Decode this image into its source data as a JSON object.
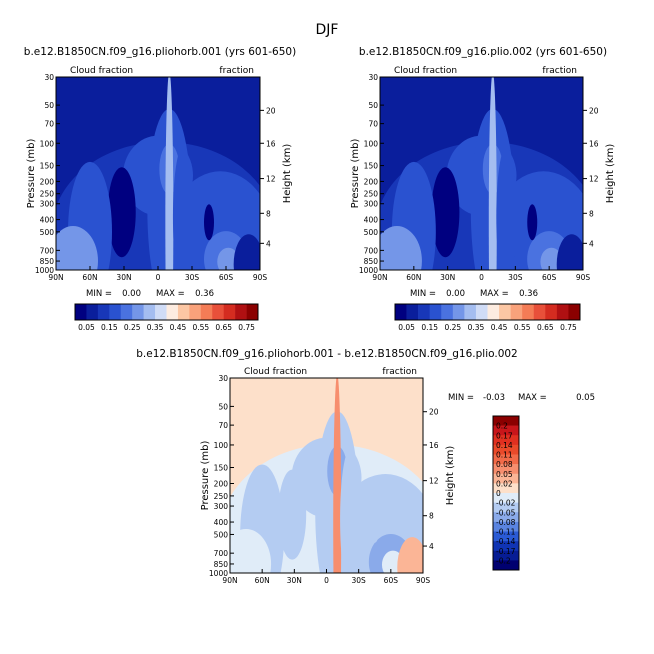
{
  "figure": {
    "title": "DJF"
  },
  "chart_data": [
    {
      "type": "heatmap",
      "title": "b.e12.B1850CN.f09_g16.pliohorb.001 (yrs 601-650)",
      "left_label": "Cloud fraction",
      "right_label": "fraction",
      "xlabel": "",
      "ylabel": "Pressure (mb)",
      "y2label": "Height (km)",
      "x_ticks": [
        "90N",
        "60N",
        "30N",
        "0",
        "30S",
        "60S",
        "90S"
      ],
      "y_ticks": [
        "30",
        "50",
        "70",
        "100",
        "150",
        "200",
        "250",
        "300",
        "400",
        "500",
        "700",
        "850",
        "1000"
      ],
      "y2_ticks": [
        "20",
        "16",
        "12",
        "8",
        "4"
      ],
      "xlim": [
        90,
        -90
      ],
      "ylim": [
        1000,
        30
      ],
      "stats": {
        "min_label": "MIN =",
        "min": "0.00",
        "max_label": "MAX =",
        "max": "0.36"
      },
      "colorbar": {
        "labels": [
          "0.05",
          "0.15",
          "0.25",
          "0.35",
          "0.45",
          "0.55",
          "0.65",
          "0.75"
        ],
        "colors": [
          "#000080",
          "#0a1e9c",
          "#1837b8",
          "#2a52d0",
          "#4a72e0",
          "#7496e8",
          "#a4bdf0",
          "#d0dcf6",
          "#fdece0",
          "#fcc7a4",
          "#f9a27b",
          "#f47c56",
          "#e8503a",
          "#d42c20",
          "#b01012",
          "#8b0000"
        ]
      },
      "colors": {
        "background": "#0a1e9c",
        "field": "#1837b8",
        "mid": "#2a52d0",
        "light": "#4a72e0",
        "lighter": "#7496e8",
        "core": "#a4bdf0",
        "low": "#0a1e9c",
        "dry": "#000080"
      }
    },
    {
      "type": "heatmap",
      "title": "b.e12.B1850CN.f09_g16.plio.002 (yrs 601-650)",
      "left_label": "Cloud fraction",
      "right_label": "fraction",
      "xlabel": "",
      "ylabel": "Pressure (mb)",
      "y2label": "Height (km)",
      "x_ticks": [
        "90N",
        "60N",
        "30N",
        "0",
        "30S",
        "60S",
        "90S"
      ],
      "y_ticks": [
        "30",
        "50",
        "70",
        "100",
        "150",
        "200",
        "250",
        "300",
        "400",
        "500",
        "700",
        "850",
        "1000"
      ],
      "y2_ticks": [
        "20",
        "16",
        "12",
        "8",
        "4"
      ],
      "xlim": [
        90,
        -90
      ],
      "ylim": [
        1000,
        30
      ],
      "stats": {
        "min_label": "MIN =",
        "min": "0.00",
        "max_label": "MAX =",
        "max": "0.36"
      },
      "colorbar": {
        "labels": [
          "0.05",
          "0.15",
          "0.25",
          "0.35",
          "0.45",
          "0.55",
          "0.65",
          "0.75"
        ],
        "colors": [
          "#000080",
          "#0a1e9c",
          "#1837b8",
          "#2a52d0",
          "#4a72e0",
          "#7496e8",
          "#a4bdf0",
          "#d0dcf6",
          "#fdece0",
          "#fcc7a4",
          "#f9a27b",
          "#f47c56",
          "#e8503a",
          "#d42c20",
          "#b01012",
          "#8b0000"
        ]
      },
      "colors": {
        "background": "#0a1e9c",
        "field": "#1837b8",
        "mid": "#2a52d0",
        "light": "#4a72e0",
        "lighter": "#7496e8",
        "core": "#a4bdf0",
        "low": "#0a1e9c",
        "dry": "#000080"
      }
    },
    {
      "type": "heatmap",
      "title": "b.e12.B1850CN.f09_g16.pliohorb.001 - b.e12.B1850CN.f09_g16.plio.002",
      "left_label": "Cloud fraction",
      "right_label": "fraction",
      "xlabel": "",
      "ylabel": "Pressure (mb)",
      "y2label": "Height (km)",
      "x_ticks": [
        "90N",
        "60N",
        "30N",
        "0",
        "30S",
        "60S",
        "90S"
      ],
      "y_ticks": [
        "30",
        "50",
        "70",
        "100",
        "150",
        "200",
        "250",
        "300",
        "400",
        "500",
        "700",
        "850",
        "1000"
      ],
      "y2_ticks": [
        "20",
        "16",
        "12",
        "8",
        "4"
      ],
      "xlim": [
        90,
        -90
      ],
      "ylim": [
        1000,
        30
      ],
      "stats": {
        "min_label": "MIN =",
        "min": "-0.03",
        "max_label": "MAX =",
        "max": "0.05"
      },
      "colorbar": {
        "labels": [
          "0.2",
          "0.17",
          "0.14",
          "0.11",
          "0.08",
          "0.05",
          "0.02",
          "0",
          "-0.02",
          "-0.05",
          "-0.08",
          "-0.11",
          "-0.14",
          "-0.17",
          "-0.2"
        ],
        "colors": [
          "#8b0000",
          "#c8161a",
          "#e03020",
          "#ea4a2a",
          "#f26a48",
          "#f78e6e",
          "#fbb596",
          "#fde0ca",
          "#e0ecf8",
          "#b4ccf2",
          "#8aaaea",
          "#5a84e0",
          "#2a5ad4",
          "#1034b4",
          "#061c94",
          "#000070"
        ]
      },
      "colors": {
        "background": "#fde0ca",
        "field": "#e0ecf8",
        "mid": "#b4ccf2",
        "light": "#8aaaea",
        "lighter": "#e0ecf8",
        "core": "#f78e6e",
        "low": "#fbb596",
        "dry": "#b4ccf2"
      }
    }
  ]
}
